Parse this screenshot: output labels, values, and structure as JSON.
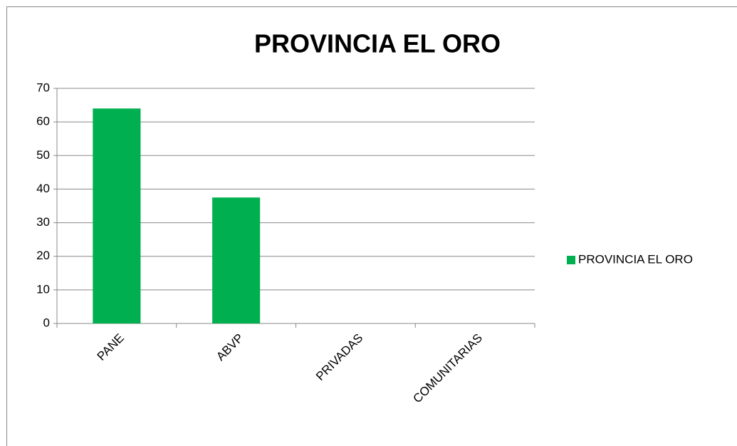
{
  "chart_data": {
    "type": "bar",
    "title": "PROVINCIA EL ORO",
    "categories": [
      "PANE",
      "ABVP",
      "PRIVADAS",
      "COMUNITARIAS"
    ],
    "series": [
      {
        "name": "PROVINCIA EL ORO",
        "color": "#00b050",
        "values": [
          64,
          37.5,
          0,
          0
        ]
      }
    ],
    "ylim": [
      0,
      70
    ],
    "yticks": [
      0,
      10,
      20,
      30,
      40,
      50,
      60,
      70
    ],
    "grid": true,
    "legend": "right"
  }
}
